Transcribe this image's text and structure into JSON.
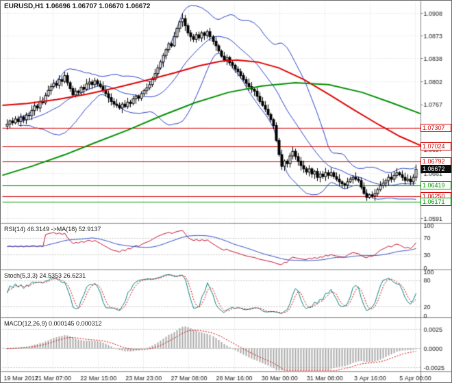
{
  "header": {
    "symbol_line": "EURUSD,H1 1.06696 1.06707 1.06670 1.06672"
  },
  "panes": {
    "rsi": {
      "label": "RSI(14) 46.3149 ->MA(18) 52.9137",
      "ticks": [
        100,
        70,
        30,
        0
      ],
      "levels": [
        70,
        30
      ]
    },
    "stoch": {
      "label": "Stoch(5,3,3) 24.5353 26.6231",
      "ticks": [
        100,
        80,
        20,
        0
      ],
      "levels": [
        80,
        20
      ]
    },
    "macd": {
      "label": "MACD(12,26,9) 0.000145 0.000312",
      "ticks": [
        {
          "v": 0.0025,
          "label": "0.0025"
        },
        {
          "v": 0,
          "label": "0.0000"
        },
        {
          "v": -0.0025,
          "label": "-0.0025"
        }
      ]
    }
  },
  "hlines": [
    {
      "price": 1.07307,
      "label": "1.07307",
      "color": "#d40000"
    },
    {
      "price": 1.07024,
      "label": "1.07024",
      "color": "#d40000"
    },
    {
      "price": 1.06792,
      "label": "1.06792",
      "color": "#d40000"
    },
    {
      "price": 1.0625,
      "label": "1.06250",
      "color": "#d40000"
    },
    {
      "price": 1.06419,
      "label": "1.06419",
      "color": "#009400"
    },
    {
      "price": 1.06171,
      "label": "1.06171",
      "color": "#009400"
    }
  ],
  "current_price": {
    "price": 1.06672,
    "label": "1.06672"
  },
  "colors": {
    "bull": "#ffffff",
    "bear": "#000000",
    "wick": "#000000",
    "bollinger": "#2840c8",
    "ma_red": "#e00000",
    "ma_green": "#008f00",
    "grid": "#d9d9d9",
    "level": "#c4c4c4",
    "rsi_line": "#c8102e",
    "rsi_ma": "#3050c8",
    "stoch_k": "#008080",
    "stoch_d": "#d40000",
    "macd_hist": "#a9a9a9",
    "macd_signal": "#d40000",
    "separator": "#808080",
    "text": "#1a1a1a"
  },
  "chart_data": {
    "type": "candlestick+indicators",
    "symbol": "EURUSD",
    "timeframe": "H1",
    "price_range": {
      "top": 1.0925,
      "bottom": 1.0585
    },
    "price_ticks": [
      "1.0908",
      "1.0873",
      "1.0838",
      "1.0802",
      "1.0767",
      "1.0732",
      "1.0697",
      "1.0661",
      "1.0626",
      "1.0591"
    ],
    "x_labels": [
      "19 Mar 2017",
      "21 Mar 07:00",
      "22 Mar 15:00",
      "23 Mar 23:00",
      "27 Mar 08:00",
      "28 Mar 16:00",
      "30 Mar 00:00",
      "31 Mar 08:00",
      "3 Apr 16:00",
      "5 Apr 00:00"
    ],
    "open0": 1.0734,
    "closes": [
      1.0737,
      1.0742,
      1.0739,
      1.0745,
      1.0741,
      1.0748,
      1.0744,
      1.0751,
      1.075,
      1.0758,
      1.0765,
      1.0762,
      1.0772,
      1.077,
      1.0781,
      1.0789,
      1.0795,
      1.08,
      1.0797,
      1.0806,
      1.0803,
      1.0812,
      1.0801,
      1.0792,
      1.0782,
      1.0788,
      1.0786,
      1.0794,
      1.0791,
      1.0799,
      1.0802,
      1.0798,
      1.0804,
      1.0799,
      1.0795,
      1.0789,
      1.0784,
      1.0778,
      1.0772,
      1.0768,
      1.0766,
      1.0762,
      1.0768,
      1.0764,
      1.0771,
      1.0769,
      1.0776,
      1.078,
      1.0777,
      1.0784,
      1.0789,
      1.0793,
      1.0798,
      1.0806,
      1.0815,
      1.0824,
      1.0833,
      1.0843,
      1.0852,
      1.0861,
      1.0858,
      1.0872,
      1.0885,
      1.0895,
      1.09,
      1.0889,
      1.0878,
      1.0872,
      1.0868,
      1.0875,
      1.087,
      1.0878,
      1.0874,
      1.088,
      1.0872,
      1.0865,
      1.0858,
      1.085,
      1.0842,
      1.0836,
      1.084,
      1.0832,
      1.0828,
      1.0822,
      1.0818,
      1.0812,
      1.0806,
      1.08,
      1.0795,
      1.0791,
      1.0788,
      1.078,
      1.0772,
      1.0766,
      1.076,
      1.0752,
      1.0744,
      1.0735,
      1.0712,
      1.069,
      1.0672,
      1.068,
      1.0676,
      1.0688,
      1.0695,
      1.0687,
      1.068,
      1.0673,
      1.0668,
      1.0663,
      1.0668,
      1.066,
      1.0664,
      1.0655,
      1.066,
      1.0656,
      1.0662,
      1.0658,
      1.0662,
      1.0656,
      1.0652,
      1.0648,
      1.0645,
      1.0643,
      1.0648,
      1.0652,
      1.0655,
      1.0652,
      1.065,
      1.064,
      1.063,
      1.0624,
      1.0628,
      1.0626,
      1.063,
      1.0636,
      1.0642,
      1.0646,
      1.065,
      1.0655,
      1.0652,
      1.0658,
      1.0662,
      1.0659,
      1.0655,
      1.065,
      1.0652,
      1.0648,
      1.0655,
      1.06672
    ],
    "bollinger": {
      "period": 20,
      "deviation": 2
    },
    "ma_red": {
      "points": [
        [
          0.0,
          1.0766
        ],
        [
          0.06,
          1.0769
        ],
        [
          0.13,
          1.0775
        ],
        [
          0.2,
          1.0783
        ],
        [
          0.27,
          1.0793
        ],
        [
          0.34,
          1.0804
        ],
        [
          0.41,
          1.0816
        ],
        [
          0.47,
          1.0827
        ],
        [
          0.52,
          1.0834
        ],
        [
          0.56,
          1.0836
        ],
        [
          0.61,
          1.0833
        ],
        [
          0.66,
          1.0824
        ],
        [
          0.72,
          1.0806
        ],
        [
          0.78,
          1.0783
        ],
        [
          0.84,
          1.0759
        ],
        [
          0.9,
          1.0736
        ],
        [
          0.95,
          1.0718
        ],
        [
          1.0,
          1.0704
        ]
      ]
    },
    "ma_green": {
      "points": [
        [
          0.0,
          1.0658
        ],
        [
          0.07,
          1.0672
        ],
        [
          0.15,
          1.069
        ],
        [
          0.22,
          1.0708
        ],
        [
          0.3,
          1.0728
        ],
        [
          0.38,
          1.075
        ],
        [
          0.46,
          1.077
        ],
        [
          0.54,
          1.0786
        ],
        [
          0.62,
          1.0796
        ],
        [
          0.7,
          1.0801
        ],
        [
          0.78,
          1.0798
        ],
        [
          0.86,
          1.0786
        ],
        [
          0.93,
          1.077
        ],
        [
          1.0,
          1.0753
        ]
      ]
    },
    "rsi": {
      "period": 14,
      "ma_period": 18,
      "last": 46.3149,
      "ma_last": 52.9137
    },
    "stoch": {
      "k": 5,
      "d": 3,
      "slowing": 3,
      "last": 24.5353,
      "signal_last": 26.6231
    },
    "macd": {
      "fast": 12,
      "slow": 26,
      "signal": 9,
      "last": 0.000145,
      "signal_last": 0.000312
    }
  }
}
